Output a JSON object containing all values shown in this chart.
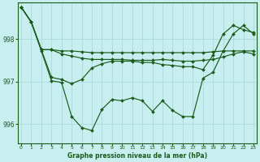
{
  "title": "Graphe pression niveau de la mer (hPa)",
  "bg_color": "#c8eef0",
  "line_color": "#1a5c1a",
  "grid_color": "#b0dde0",
  "ylim": [
    995.55,
    998.85
  ],
  "yticks": [
    996,
    997,
    998
  ],
  "xlim": [
    -0.3,
    23.3
  ],
  "xticks": [
    0,
    1,
    2,
    3,
    4,
    5,
    6,
    7,
    8,
    9,
    10,
    11,
    12,
    13,
    14,
    15,
    16,
    17,
    18,
    19,
    20,
    21,
    22,
    23
  ],
  "series": [
    [
      998.75,
      998.4,
      997.75,
      997.75,
      997.72,
      997.72,
      997.7,
      997.68,
      997.68,
      997.68,
      997.68,
      997.68,
      997.68,
      997.68,
      997.68,
      997.68,
      997.68,
      997.68,
      997.68,
      997.7,
      997.72,
      997.72,
      997.72,
      997.72
    ],
    [
      998.75,
      998.4,
      997.75,
      997.75,
      997.65,
      997.6,
      997.55,
      997.52,
      997.52,
      997.52,
      997.52,
      997.5,
      997.5,
      997.5,
      997.52,
      997.5,
      997.48,
      997.48,
      997.5,
      997.52,
      997.58,
      997.65,
      997.7,
      997.65
    ],
    [
      998.75,
      998.4,
      997.75,
      997.1,
      997.05,
      996.95,
      997.05,
      997.32,
      997.42,
      997.48,
      997.48,
      997.48,
      997.45,
      997.45,
      997.4,
      997.38,
      997.35,
      997.35,
      997.28,
      997.62,
      998.12,
      998.32,
      998.22,
      998.15
    ],
    [
      998.75,
      998.4,
      997.72,
      997.02,
      996.98,
      996.18,
      995.92,
      995.85,
      996.35,
      996.58,
      996.55,
      996.62,
      996.55,
      996.3,
      996.55,
      996.32,
      996.18,
      996.18,
      997.08,
      997.22,
      997.72,
      998.12,
      998.32,
      998.12
    ]
  ]
}
